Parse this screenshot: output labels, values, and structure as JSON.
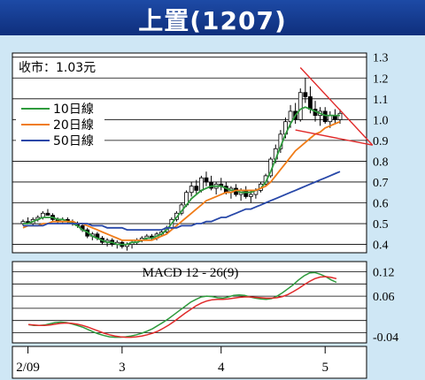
{
  "title": "上置(1207)",
  "chart_data": [
    {
      "type": "candlestick",
      "price_label": "收市：1.03元",
      "y_ticks": [
        "1.3",
        "1.2",
        "1.1",
        "1.0",
        "0.9",
        "0.8",
        "0.7",
        "0.6",
        "0.5",
        "0.4"
      ],
      "ylim": [
        0.36,
        1.32
      ],
      "x_ticks": [
        "2/09",
        "3",
        "4",
        "5"
      ],
      "legend_position": "top-left",
      "legend": [
        {
          "name": "10日線",
          "color": "#2e9a3c"
        },
        {
          "name": "20日線",
          "color": "#f07c18"
        },
        {
          "name": "50日線",
          "color": "#2747a8"
        }
      ],
      "candles": [
        [
          0.5,
          0.52,
          0.49,
          0.51
        ],
        [
          0.51,
          0.53,
          0.5,
          0.5
        ],
        [
          0.5,
          0.53,
          0.49,
          0.52
        ],
        [
          0.52,
          0.54,
          0.51,
          0.53
        ],
        [
          0.53,
          0.56,
          0.52,
          0.55
        ],
        [
          0.55,
          0.57,
          0.54,
          0.54
        ],
        [
          0.54,
          0.55,
          0.51,
          0.52
        ],
        [
          0.52,
          0.53,
          0.5,
          0.51
        ],
        [
          0.51,
          0.53,
          0.5,
          0.52
        ],
        [
          0.52,
          0.53,
          0.5,
          0.51
        ],
        [
          0.51,
          0.52,
          0.49,
          0.5
        ],
        [
          0.5,
          0.51,
          0.48,
          0.49
        ],
        [
          0.49,
          0.5,
          0.46,
          0.47
        ],
        [
          0.47,
          0.48,
          0.43,
          0.44
        ],
        [
          0.44,
          0.46,
          0.42,
          0.45
        ],
        [
          0.45,
          0.46,
          0.42,
          0.43
        ],
        [
          0.43,
          0.44,
          0.4,
          0.41
        ],
        [
          0.41,
          0.43,
          0.39,
          0.42
        ],
        [
          0.42,
          0.43,
          0.39,
          0.4
        ],
        [
          0.4,
          0.42,
          0.38,
          0.41
        ],
        [
          0.41,
          0.42,
          0.38,
          0.39
        ],
        [
          0.39,
          0.41,
          0.37,
          0.4
        ],
        [
          0.4,
          0.42,
          0.38,
          0.41
        ],
        [
          0.41,
          0.43,
          0.4,
          0.42
        ],
        [
          0.42,
          0.44,
          0.41,
          0.43
        ],
        [
          0.43,
          0.45,
          0.42,
          0.44
        ],
        [
          0.44,
          0.45,
          0.42,
          0.43
        ],
        [
          0.43,
          0.46,
          0.42,
          0.45
        ],
        [
          0.45,
          0.47,
          0.44,
          0.46
        ],
        [
          0.46,
          0.49,
          0.45,
          0.48
        ],
        [
          0.48,
          0.53,
          0.47,
          0.52
        ],
        [
          0.52,
          0.56,
          0.51,
          0.55
        ],
        [
          0.55,
          0.6,
          0.54,
          0.59
        ],
        [
          0.59,
          0.66,
          0.58,
          0.65
        ],
        [
          0.65,
          0.7,
          0.63,
          0.68
        ],
        [
          0.68,
          0.71,
          0.64,
          0.66
        ],
        [
          0.66,
          0.73,
          0.65,
          0.72
        ],
        [
          0.72,
          0.75,
          0.68,
          0.7
        ],
        [
          0.7,
          0.73,
          0.66,
          0.67
        ],
        [
          0.67,
          0.7,
          0.64,
          0.69
        ],
        [
          0.69,
          0.72,
          0.66,
          0.68
        ],
        [
          0.68,
          0.7,
          0.64,
          0.65
        ],
        [
          0.65,
          0.68,
          0.62,
          0.67
        ],
        [
          0.67,
          0.69,
          0.63,
          0.64
        ],
        [
          0.64,
          0.67,
          0.61,
          0.66
        ],
        [
          0.66,
          0.68,
          0.62,
          0.63
        ],
        [
          0.63,
          0.66,
          0.6,
          0.64
        ],
        [
          0.64,
          0.67,
          0.62,
          0.66
        ],
        [
          0.66,
          0.7,
          0.65,
          0.69
        ],
        [
          0.69,
          0.74,
          0.68,
          0.73
        ],
        [
          0.73,
          0.82,
          0.72,
          0.81
        ],
        [
          0.81,
          0.88,
          0.79,
          0.86
        ],
        [
          0.86,
          0.95,
          0.84,
          0.93
        ],
        [
          0.93,
          1.01,
          0.91,
          0.99
        ],
        [
          0.99,
          1.07,
          0.96,
          1.04
        ],
        [
          1.04,
          1.08,
          0.98,
          1.0
        ],
        [
          1.0,
          1.15,
          0.99,
          1.13
        ],
        [
          1.13,
          1.2,
          1.08,
          1.11
        ],
        [
          1.11,
          1.16,
          1.03,
          1.05
        ],
        [
          1.05,
          1.09,
          0.99,
          1.02
        ],
        [
          1.02,
          1.06,
          0.97,
          1.04
        ],
        [
          1.04,
          1.06,
          0.98,
          0.99
        ],
        [
          0.99,
          1.04,
          0.96,
          1.02
        ],
        [
          1.02,
          1.05,
          0.98,
          1.0
        ],
        [
          1.0,
          1.05,
          0.98,
          1.03
        ]
      ],
      "ma10": [
        0.5,
        0.5,
        0.51,
        0.52,
        0.53,
        0.53,
        0.53,
        0.52,
        0.52,
        0.51,
        0.5,
        0.49,
        0.47,
        0.46,
        0.44,
        0.43,
        0.42,
        0.41,
        0.41,
        0.4,
        0.4,
        0.4,
        0.41,
        0.41,
        0.42,
        0.43,
        0.43,
        0.44,
        0.45,
        0.47,
        0.5,
        0.53,
        0.56,
        0.59,
        0.62,
        0.64,
        0.66,
        0.67,
        0.68,
        0.68,
        0.68,
        0.67,
        0.66,
        0.66,
        0.65,
        0.65,
        0.65,
        0.66,
        0.67,
        0.7,
        0.75,
        0.81,
        0.87,
        0.93,
        0.98,
        1.02,
        1.05,
        1.06,
        1.05,
        1.04,
        1.03,
        1.02,
        1.02,
        1.02,
        1.02
      ],
      "ma20": [
        0.48,
        0.49,
        0.49,
        0.49,
        0.5,
        0.5,
        0.51,
        0.51,
        0.51,
        0.51,
        0.51,
        0.5,
        0.5,
        0.49,
        0.48,
        0.47,
        0.46,
        0.45,
        0.44,
        0.43,
        0.42,
        0.42,
        0.42,
        0.42,
        0.42,
        0.42,
        0.42,
        0.43,
        0.44,
        0.45,
        0.47,
        0.49,
        0.51,
        0.53,
        0.55,
        0.57,
        0.59,
        0.61,
        0.62,
        0.63,
        0.64,
        0.65,
        0.65,
        0.66,
        0.66,
        0.66,
        0.66,
        0.66,
        0.67,
        0.68,
        0.7,
        0.73,
        0.76,
        0.79,
        0.82,
        0.85,
        0.87,
        0.89,
        0.91,
        0.93,
        0.94,
        0.96,
        0.97,
        0.98,
        0.99
      ],
      "ma50": [
        0.49,
        0.49,
        0.49,
        0.49,
        0.49,
        0.5,
        0.5,
        0.5,
        0.5,
        0.5,
        0.5,
        0.5,
        0.5,
        0.5,
        0.49,
        0.49,
        0.49,
        0.48,
        0.48,
        0.48,
        0.48,
        0.47,
        0.47,
        0.47,
        0.47,
        0.47,
        0.47,
        0.47,
        0.47,
        0.48,
        0.48,
        0.48,
        0.49,
        0.49,
        0.49,
        0.5,
        0.5,
        0.51,
        0.51,
        0.52,
        0.53,
        0.53,
        0.54,
        0.55,
        0.56,
        0.57,
        0.57,
        0.58,
        0.59,
        0.6,
        0.61,
        0.62,
        0.63,
        0.64,
        0.65,
        0.66,
        0.67,
        0.68,
        0.69,
        0.7,
        0.71,
        0.72,
        0.73,
        0.74,
        0.75
      ],
      "trend_lines": [
        {
          "color": "#e02a2a",
          "points": [
            [
              56,
              1.25
            ],
            [
              67,
              0.89
            ]
          ]
        },
        {
          "color": "#e02a2a",
          "points": [
            [
              55,
              0.95
            ],
            [
              67,
              0.89
            ]
          ]
        }
      ]
    },
    {
      "type": "line",
      "title": "MACD 12 - 26(9)",
      "y_ticks": [
        "0.12",
        "0.06",
        "-0.04"
      ],
      "ylim": [
        -0.055,
        0.145
      ],
      "series": [
        {
          "color": "#2e9a3c",
          "values": [
            -0.01,
            -0.012,
            -0.012,
            -0.011,
            -0.008,
            -0.005,
            -0.004,
            -0.005,
            -0.008,
            -0.012,
            -0.016,
            -0.022,
            -0.028,
            -0.033,
            -0.037,
            -0.04,
            -0.041,
            -0.041,
            -0.04,
            -0.038,
            -0.035,
            -0.031,
            -0.026,
            -0.02,
            -0.012,
            -0.004,
            0.005,
            0.015,
            0.025,
            0.035,
            0.045,
            0.052,
            0.058,
            0.06,
            0.059,
            0.056,
            0.055,
            0.058,
            0.062,
            0.063,
            0.062,
            0.058,
            0.055,
            0.053,
            0.052,
            0.054,
            0.06,
            0.068,
            0.078,
            0.088,
            0.1,
            0.11,
            0.117,
            0.118,
            0.114,
            0.108,
            0.1,
            0.094
          ]
        },
        {
          "color": "#e02a2a",
          "values": [
            -0.01,
            -0.011,
            -0.012,
            -0.012,
            -0.011,
            -0.009,
            -0.007,
            -0.006,
            -0.007,
            -0.009,
            -0.012,
            -0.016,
            -0.021,
            -0.026,
            -0.031,
            -0.035,
            -0.038,
            -0.04,
            -0.041,
            -0.041,
            -0.04,
            -0.038,
            -0.035,
            -0.031,
            -0.026,
            -0.019,
            -0.011,
            -0.002,
            0.008,
            0.018,
            0.027,
            0.036,
            0.043,
            0.048,
            0.051,
            0.052,
            0.052,
            0.053,
            0.055,
            0.057,
            0.058,
            0.058,
            0.057,
            0.056,
            0.055,
            0.055,
            0.056,
            0.059,
            0.064,
            0.071,
            0.079,
            0.088,
            0.096,
            0.103,
            0.107,
            0.108,
            0.106,
            0.103
          ]
        }
      ]
    }
  ]
}
